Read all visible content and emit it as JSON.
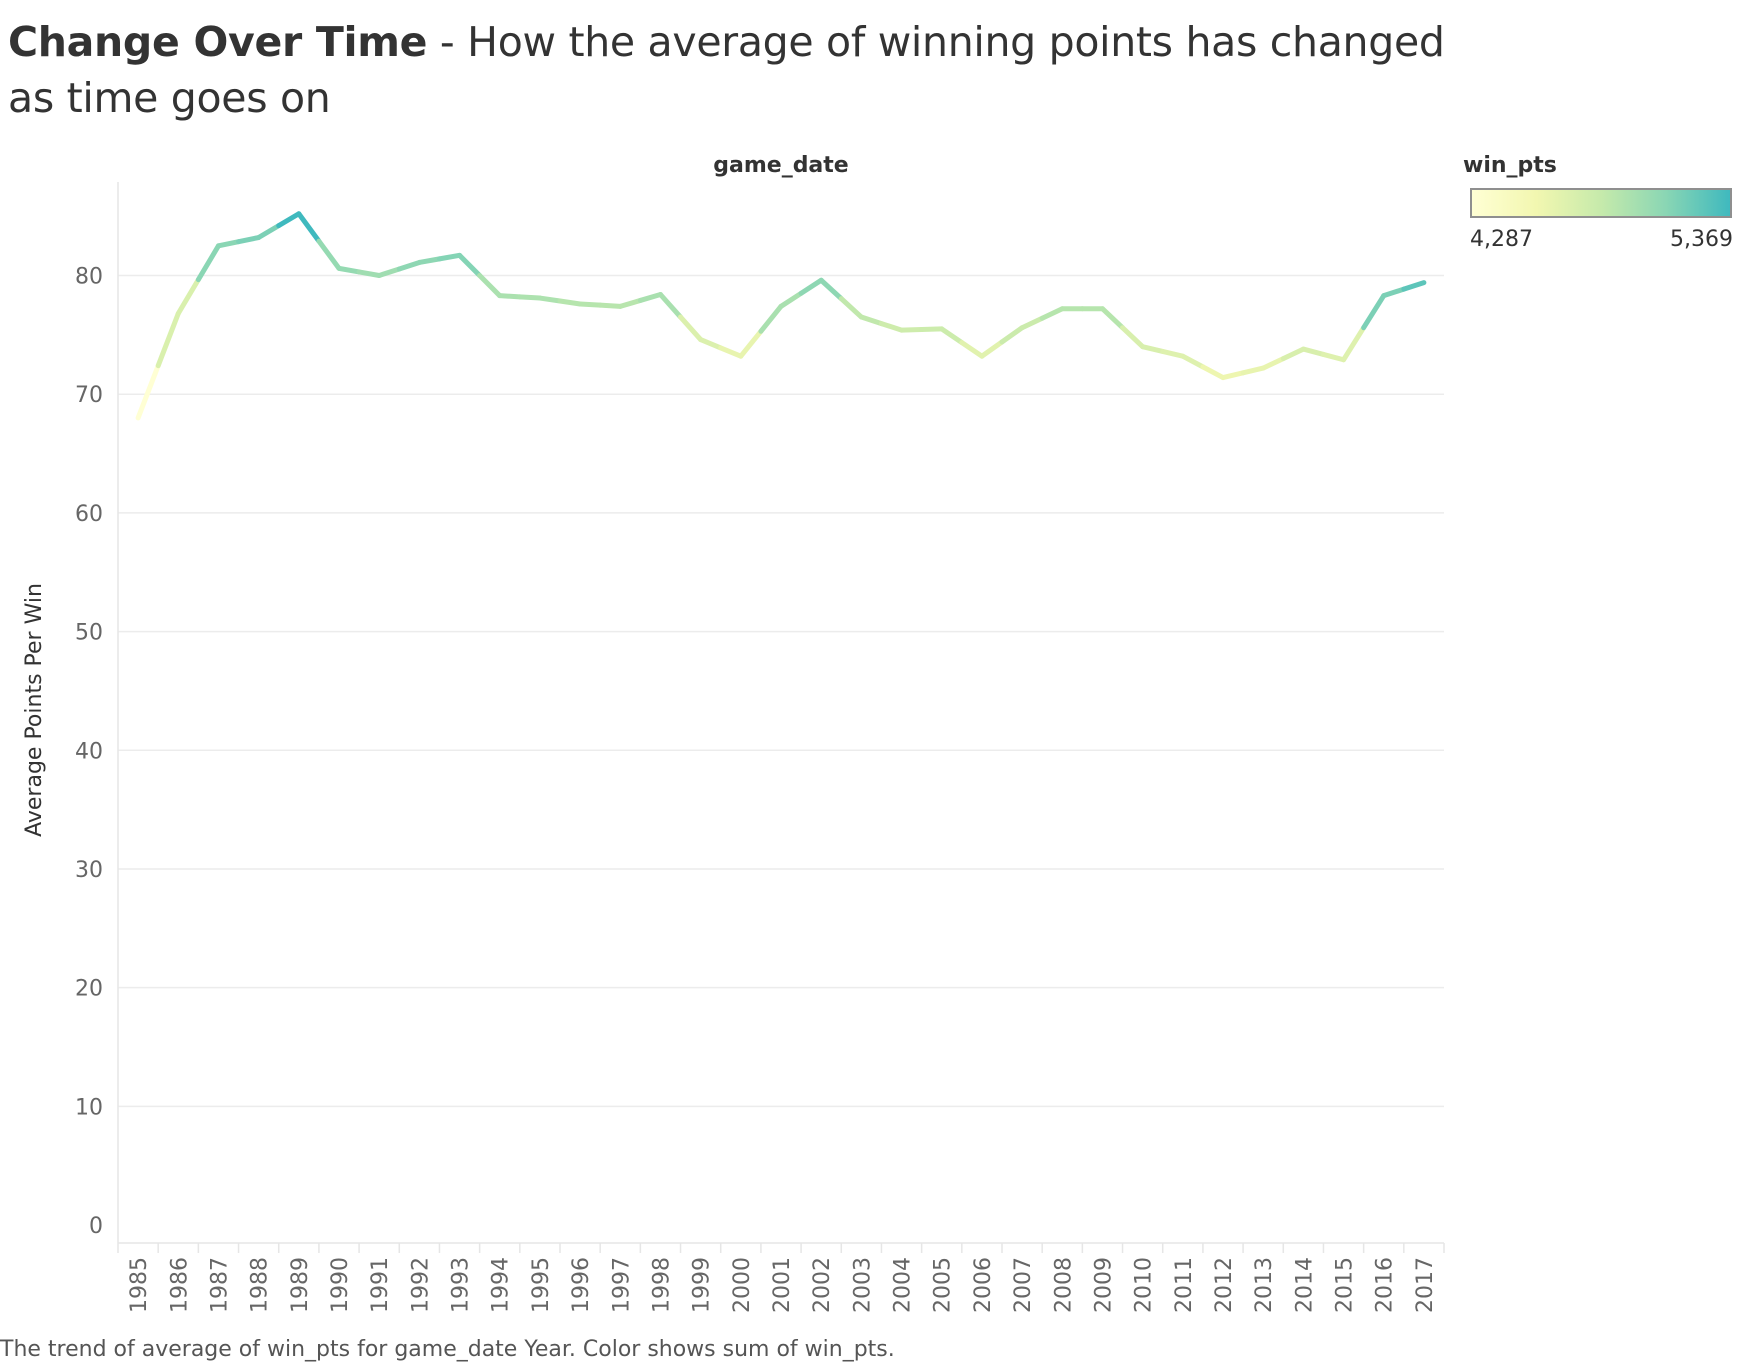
{
  "title": {
    "bold": "Change Over Time",
    "rest": " - How the average of winning points has changed as time goes on"
  },
  "caption": "The trend of average of win_pts for game_date Year.  Color shows sum of win_pts.",
  "legend": {
    "title": "win_pts",
    "min_label": "4,287",
    "max_label": "5,369",
    "min_color": "#ffffd4",
    "max_color": "#3fb9be"
  },
  "chart_data": {
    "type": "line",
    "xlabel_top": "game_date",
    "ylabel": "Average Points Per Win",
    "ylim": [
      0,
      90
    ],
    "yticks": [
      0,
      10,
      20,
      30,
      40,
      50,
      60,
      70,
      80
    ],
    "grid": true,
    "color_encoding": "sum of win_pts",
    "color_range": [
      4287,
      5369
    ],
    "x": [
      1985,
      1986,
      1987,
      1988,
      1989,
      1990,
      1991,
      1992,
      1993,
      1994,
      1995,
      1996,
      1997,
      1998,
      1999,
      2000,
      2001,
      2002,
      2003,
      2004,
      2005,
      2006,
      2007,
      2008,
      2009,
      2010,
      2011,
      2012,
      2013,
      2014,
      2015,
      2016,
      2017
    ],
    "values": [
      68.0,
      76.8,
      82.5,
      83.2,
      85.2,
      80.6,
      80.0,
      81.1,
      81.7,
      78.3,
      78.1,
      77.6,
      77.4,
      78.4,
      74.6,
      73.2,
      77.4,
      79.6,
      76.5,
      75.4,
      75.5,
      73.2,
      75.6,
      77.2,
      77.2,
      74.0,
      73.2,
      71.4,
      72.2,
      73.8,
      72.9,
      78.3,
      79.4
    ],
    "color_values": [
      4287,
      4710,
      5100,
      5150,
      5369,
      5050,
      5000,
      5080,
      5120,
      4950,
      4940,
      4900,
      4890,
      4960,
      4700,
      4620,
      4960,
      5080,
      4850,
      4780,
      4790,
      4660,
      4800,
      4900,
      4900,
      4720,
      4680,
      4580,
      4620,
      4720,
      4680,
      5150,
      5260
    ]
  }
}
